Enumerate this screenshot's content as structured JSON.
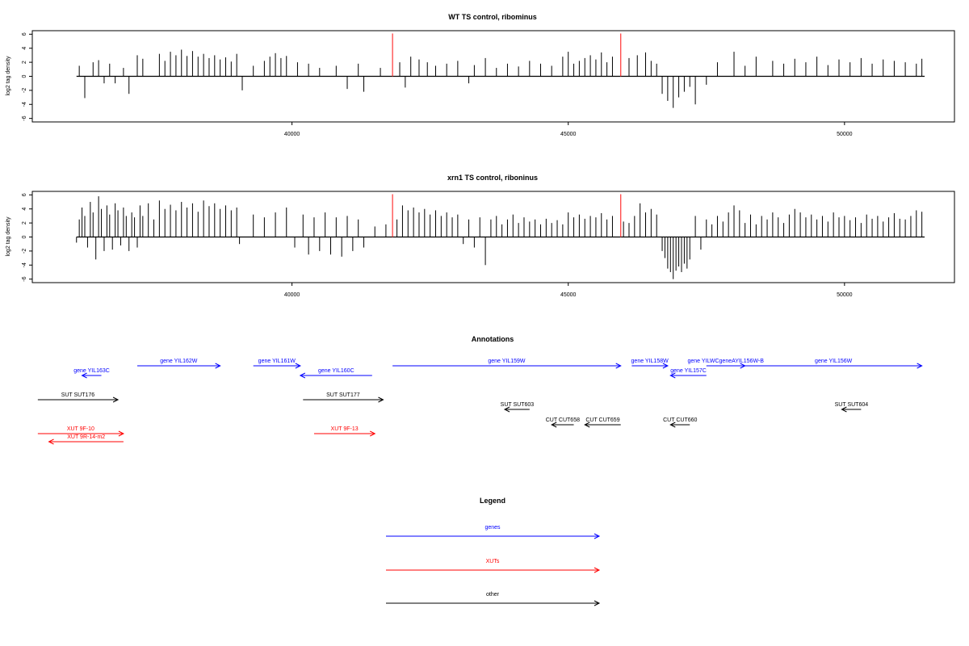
{
  "colors": {
    "bars": "#000000",
    "marker": "#ff3333",
    "gene": "#0000ff",
    "xut": "#ff0000",
    "other": "#000000"
  },
  "chart_data": [
    {
      "type": "bar",
      "title": "WT TS control, ribominus",
      "ylabel": "log2 tag density",
      "xlim": [
        35300,
        51990
      ],
      "ylim": [
        -6.5,
        6.5
      ],
      "yticks": [
        -6,
        -4,
        -2,
        0,
        2,
        4,
        6
      ],
      "xticks": [
        40000,
        45000,
        50000
      ],
      "xtick_labels": [
        "40000",
        "45000",
        "50000"
      ],
      "markers": [
        41820,
        45950
      ],
      "x_range_plotted": [
        36100,
        51450
      ],
      "series": [
        {
          "x": [
            36150,
            36250,
            36400,
            36500,
            36600,
            36700,
            36800,
            36950,
            37050,
            37200,
            37300,
            37600,
            37700,
            37800,
            37900,
            38000,
            38100,
            38200,
            38300,
            38400,
            38500,
            38600,
            38700,
            38800,
            38900,
            39000,
            39100,
            39300,
            39500,
            39600,
            39700,
            39800,
            39900,
            40100,
            40300,
            40500,
            40800,
            41000,
            41200,
            41300,
            41600,
            41950,
            42050,
            42150,
            42300,
            42450,
            42600,
            42800,
            43000,
            43200,
            43300,
            43500,
            43700,
            43900,
            44100,
            44300,
            44500,
            44700,
            44900,
            45000,
            45100,
            45200,
            45300,
            45400,
            45500,
            45600,
            45700,
            45800,
            46100,
            46250,
            46400,
            46500,
            46600,
            46700,
            46800,
            46900,
            47000,
            47100,
            47200,
            47300,
            47500,
            47700,
            48000,
            48200,
            48400,
            48700,
            48900,
            49100,
            49300,
            49500,
            49700,
            49900,
            50100,
            50300,
            50500,
            50700,
            50900,
            51100,
            51300,
            51400
          ],
          "y": [
            1.5,
            -3.1,
            2.0,
            2.3,
            -1.0,
            1.8,
            -1.0,
            1.2,
            -2.5,
            3.0,
            2.5,
            3.2,
            2.2,
            3.5,
            3.0,
            3.8,
            2.9,
            3.6,
            2.8,
            3.2,
            2.6,
            3.0,
            2.4,
            2.7,
            2.1,
            3.2,
            -2.0,
            1.5,
            2.2,
            2.8,
            3.3,
            2.6,
            2.9,
            2.0,
            1.8,
            1.2,
            1.5,
            -1.8,
            1.8,
            -2.2,
            1.2,
            2.0,
            -1.6,
            2.8,
            2.4,
            2.0,
            1.5,
            1.8,
            2.2,
            -1.0,
            1.6,
            2.6,
            1.2,
            1.8,
            1.4,
            2.2,
            1.8,
            1.5,
            2.8,
            3.5,
            1.8,
            2.2,
            2.6,
            3.0,
            2.4,
            3.4,
            2.0,
            2.8,
            2.6,
            3.0,
            3.4,
            2.2,
            1.8,
            -2.5,
            -3.5,
            -4.5,
            -3.0,
            -2.2,
            -1.5,
            -4.0,
            -1.2,
            2.0,
            3.5,
            1.5,
            2.8,
            2.2,
            1.8,
            2.5,
            2.0,
            2.8,
            1.6,
            2.4,
            2.0,
            2.6,
            1.8,
            2.4,
            2.2,
            2.0,
            1.8,
            2.5
          ]
        }
      ]
    },
    {
      "type": "bar",
      "title": "xrn1 TS control, riboninus",
      "ylabel": "log2 tag density",
      "xlim": [
        35300,
        51990
      ],
      "ylim": [
        -6.5,
        6.5
      ],
      "yticks": [
        -6,
        -4,
        -2,
        0,
        2,
        4,
        6
      ],
      "xticks": [
        40000,
        45000,
        50000
      ],
      "xtick_labels": [
        "40000",
        "45000",
        "50000"
      ],
      "markers": [
        41820,
        45950
      ],
      "x_range_plotted": [
        36100,
        51450
      ],
      "series": [
        {
          "x": [
            36100,
            36150,
            36200,
            36250,
            36300,
            36350,
            36400,
            36450,
            36500,
            36550,
            36600,
            36650,
            36700,
            36750,
            36800,
            36850,
            36900,
            36950,
            37000,
            37050,
            37100,
            37150,
            37200,
            37250,
            37300,
            37400,
            37500,
            37600,
            37700,
            37800,
            37900,
            38000,
            38100,
            38200,
            38300,
            38400,
            38500,
            38600,
            38700,
            38800,
            38900,
            39000,
            39050,
            39300,
            39500,
            39700,
            39900,
            40050,
            40200,
            40300,
            40400,
            40500,
            40600,
            40700,
            40800,
            40900,
            41000,
            41100,
            41200,
            41300,
            41500,
            41700,
            41900,
            42000,
            42100,
            42200,
            42300,
            42400,
            42500,
            42600,
            42700,
            42800,
            42900,
            43000,
            43100,
            43200,
            43300,
            43400,
            43500,
            43600,
            43700,
            43800,
            43900,
            44000,
            44100,
            44200,
            44300,
            44400,
            44500,
            44600,
            44700,
            44800,
            44900,
            45000,
            45100,
            45200,
            45300,
            45400,
            45500,
            45600,
            45700,
            45800,
            46000,
            46100,
            46200,
            46300,
            46400,
            46500,
            46600,
            46700,
            46750,
            46800,
            46850,
            46900,
            46950,
            47000,
            47050,
            47100,
            47150,
            47200,
            47300,
            47400,
            47500,
            47600,
            47700,
            47800,
            47900,
            48000,
            48100,
            48200,
            48300,
            48400,
            48500,
            48600,
            48700,
            48800,
            48900,
            49000,
            49100,
            49200,
            49300,
            49400,
            49500,
            49600,
            49700,
            49800,
            49900,
            50000,
            50100,
            50200,
            50300,
            50400,
            50500,
            50600,
            50700,
            50800,
            50900,
            51000,
            51100,
            51200,
            51300,
            51400
          ],
          "y": [
            -0.8,
            2.5,
            4.2,
            3.0,
            -1.5,
            5.0,
            3.5,
            -3.2,
            5.8,
            4.0,
            -2.0,
            4.5,
            3.2,
            -1.8,
            4.8,
            3.8,
            -1.2,
            4.2,
            3.0,
            -2.0,
            3.5,
            2.8,
            -1.5,
            4.5,
            3.0,
            4.8,
            2.5,
            5.2,
            4.0,
            4.6,
            3.8,
            5.0,
            4.2,
            4.8,
            3.6,
            5.2,
            4.4,
            4.8,
            4.0,
            4.5,
            3.8,
            4.2,
            -1.0,
            3.2,
            2.8,
            3.5,
            4.2,
            -1.5,
            3.2,
            -2.5,
            2.8,
            -2.0,
            3.5,
            -2.5,
            2.8,
            -2.8,
            3.0,
            -2.0,
            2.5,
            -1.5,
            1.5,
            1.8,
            2.5,
            4.5,
            3.8,
            4.2,
            3.5,
            4.0,
            3.2,
            3.8,
            3.0,
            3.5,
            2.8,
            3.2,
            -1.0,
            2.5,
            -1.5,
            2.8,
            -4.0,
            2.5,
            3.0,
            1.8,
            2.5,
            3.2,
            2.0,
            2.8,
            2.2,
            2.5,
            1.8,
            2.6,
            2.0,
            2.4,
            1.8,
            3.5,
            2.8,
            3.2,
            2.6,
            3.0,
            2.8,
            3.4,
            2.5,
            3.0,
            2.2,
            2.0,
            3.0,
            4.8,
            3.5,
            4.0,
            3.2,
            -2.0,
            -3.0,
            -4.5,
            -5.0,
            -6.0,
            -4.8,
            -4.2,
            -5.0,
            -3.8,
            -4.5,
            -3.2,
            3.0,
            -1.8,
            2.5,
            1.8,
            3.0,
            2.2,
            3.5,
            4.5,
            3.8,
            2.0,
            3.2,
            1.8,
            3.0,
            2.5,
            3.5,
            2.8,
            2.0,
            3.2,
            4.0,
            3.5,
            2.8,
            3.2,
            2.5,
            3.0,
            2.2,
            3.5,
            2.8,
            3.0,
            2.4,
            2.8,
            2.0,
            3.2,
            2.6,
            3.0,
            2.2,
            2.8,
            3.4,
            2.6,
            2.5,
            3.0,
            3.8,
            3.6
          ]
        }
      ]
    }
  ],
  "annotations": {
    "title": "Annotations",
    "items": [
      {
        "label": "gene YIL163C",
        "kind": "gene",
        "start": 36550,
        "end": 36200,
        "row": 1
      },
      {
        "label": "gene YIL162W",
        "kind": "gene",
        "start": 37200,
        "end": 38700,
        "row": 0
      },
      {
        "label": "gene YIL161W",
        "kind": "gene",
        "start": 39300,
        "end": 40150,
        "row": 0
      },
      {
        "label": "gene YIL160C",
        "kind": "gene",
        "start": 41450,
        "end": 40150,
        "row": 1
      },
      {
        "label": "gene YIL159W",
        "kind": "gene",
        "start": 41820,
        "end": 45950,
        "row": 0
      },
      {
        "label": "gene YIL158W",
        "kind": "gene",
        "start": 46150,
        "end": 46800,
        "row": 0
      },
      {
        "label": "gene YIL157C",
        "kind": "gene",
        "start": 47500,
        "end": 46850,
        "row": 1
      },
      {
        "label": "gene YILWCgeneAYIL156W-B",
        "kind": "gene",
        "start": 47500,
        "end": 48200,
        "row": 0
      },
      {
        "label": "gene YIL156W",
        "kind": "gene",
        "start": 48200,
        "end": 51400,
        "row": 0
      },
      {
        "label": "SUT SUT176",
        "kind": "other",
        "start": 35400,
        "end": 36850,
        "row": 2
      },
      {
        "label": "SUT SUT177",
        "kind": "other",
        "start": 40200,
        "end": 41650,
        "row": 2
      },
      {
        "label": "SUT SUT603",
        "kind": "other",
        "start": 44300,
        "end": 43850,
        "row": 3
      },
      {
        "label": "SUT SUT604",
        "kind": "other",
        "start": 50300,
        "end": 49950,
        "row": 3
      },
      {
        "label": "CUT CUT658",
        "kind": "other",
        "start": 45100,
        "end": 44700,
        "row": 4
      },
      {
        "label": "CUT CUT659",
        "kind": "other",
        "start": 45950,
        "end": 45300,
        "row": 4
      },
      {
        "label": "CUT CUT660",
        "kind": "other",
        "start": 47200,
        "end": 46850,
        "row": 4
      },
      {
        "label": "XUT 9F-10",
        "kind": "xut",
        "start": 35400,
        "end": 36950,
        "row": 5
      },
      {
        "label": "XUT 9R-14-m2",
        "kind": "xut",
        "start": 36950,
        "end": 35600,
        "row": 6
      },
      {
        "label": "XUT 9F-13",
        "kind": "xut",
        "start": 40400,
        "end": 41500,
        "row": 5
      }
    ]
  },
  "legend": {
    "title": "Legend",
    "items": [
      {
        "label": "genes",
        "kind": "gene"
      },
      {
        "label": "XUTs",
        "kind": "xut"
      },
      {
        "label": "other",
        "kind": "other"
      }
    ]
  }
}
